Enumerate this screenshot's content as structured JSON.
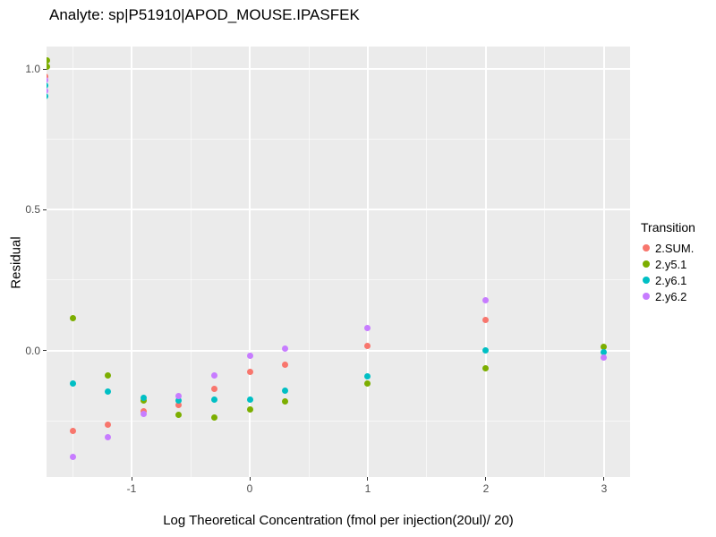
{
  "chart_data": {
    "type": "scatter",
    "title": "Analyte: sp|P51910|APOD_MOUSE.IPASFEK",
    "xlabel": "Log Theoretical Concentration (fmol per injection(20ul)/ 20)",
    "ylabel": "Residual",
    "legend_title": "Transition",
    "legend_position": "right",
    "panel_bg": "#EBEBEB",
    "grid": "white major and minor gridlines on grey panel",
    "xlim": [
      -1.72,
      3.22
    ],
    "ylim": [
      -0.45,
      1.08
    ],
    "x_ticks": {
      "values": [
        -1,
        0,
        1,
        2,
        3
      ],
      "labels": [
        "-1",
        "0",
        "1",
        "2",
        "3"
      ]
    },
    "y_ticks": {
      "values": [
        0,
        0.5,
        1
      ],
      "labels": [
        "0.0",
        "0.5",
        "1.0"
      ]
    },
    "x_minor": [
      -1.5,
      -0.5,
      0.5,
      1.5,
      2.5
    ],
    "y_minor": [
      -0.25,
      0.25,
      0.75
    ],
    "series": [
      {
        "name": "2.SUM.",
        "color": "#F8766D",
        "points": [
          [
            -1.73,
            0.975
          ],
          [
            -1.5,
            -0.287
          ],
          [
            -1.2,
            -0.263
          ],
          [
            -0.9,
            -0.216
          ],
          [
            -0.6,
            -0.195
          ],
          [
            -0.3,
            -0.137
          ],
          [
            0,
            -0.076
          ],
          [
            0.3,
            -0.05
          ],
          [
            1,
            0.017
          ],
          [
            2,
            0.107
          ]
        ]
      },
      {
        "name": "2.y5.1",
        "color": "#7CAE00",
        "points": [
          [
            -1.715,
            1.03
          ],
          [
            -1.715,
            1.008
          ],
          [
            -1.5,
            0.115
          ],
          [
            -1.2,
            -0.089
          ],
          [
            -0.9,
            -0.179
          ],
          [
            -0.6,
            -0.23
          ],
          [
            -0.3,
            -0.238
          ],
          [
            0,
            -0.209
          ],
          [
            0.3,
            -0.181
          ],
          [
            1,
            -0.117
          ],
          [
            2,
            -0.064
          ],
          [
            3,
            0.012
          ]
        ]
      },
      {
        "name": "2.y6.1",
        "color": "#00BFC4",
        "points": [
          [
            -1.73,
            0.943
          ],
          [
            -1.73,
            0.905
          ],
          [
            -1.5,
            -0.118
          ],
          [
            -1.2,
            -0.147
          ],
          [
            -0.9,
            -0.169
          ],
          [
            -0.6,
            -0.179
          ],
          [
            -0.3,
            -0.174
          ],
          [
            0,
            -0.175
          ],
          [
            0.3,
            -0.142
          ],
          [
            1,
            -0.092
          ],
          [
            2,
            0
          ],
          [
            3,
            -0.006
          ]
        ]
      },
      {
        "name": "2.y6.2",
        "color": "#C77CFF",
        "points": [
          [
            -1.73,
            0.96
          ],
          [
            -1.73,
            0.924
          ],
          [
            -1.5,
            -0.378
          ],
          [
            -1.2,
            -0.308
          ],
          [
            -0.9,
            -0.225
          ],
          [
            -0.6,
            -0.163
          ],
          [
            -0.3,
            -0.089
          ],
          [
            0,
            -0.018
          ],
          [
            0.3,
            0.006
          ],
          [
            1,
            0.08
          ],
          [
            2,
            0.179
          ],
          [
            3,
            -0.025
          ]
        ]
      }
    ]
  }
}
